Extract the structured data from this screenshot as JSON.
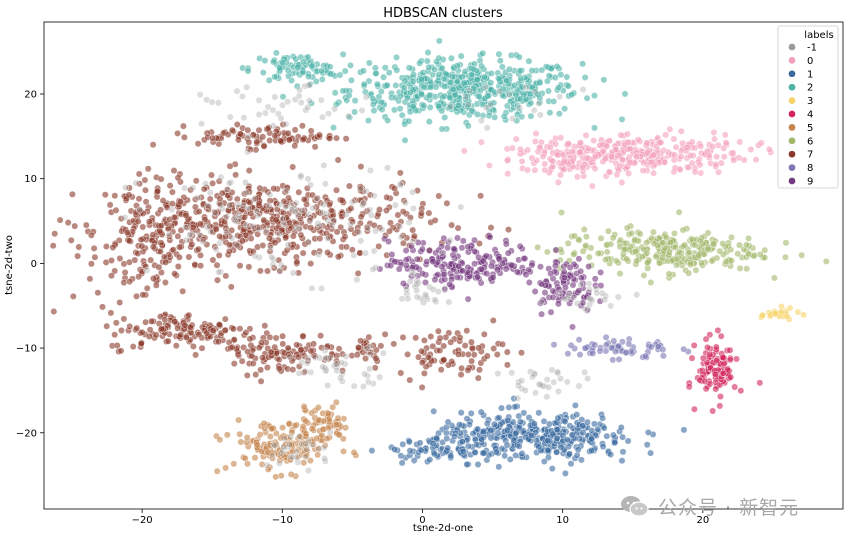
{
  "chart_data": {
    "type": "scatter",
    "title": "HDBSCAN clusters",
    "xlabel": "tsne-2d-one",
    "ylabel": "tsne-2d-two",
    "xlim": [
      -27,
      30
    ],
    "ylim": [
      -29,
      28.5
    ],
    "xticks": [
      -20,
      -10,
      0,
      10,
      20
    ],
    "yticks": [
      -20,
      -10,
      0,
      10,
      20
    ],
    "xtick_labels": [
      "−20",
      "−10",
      "0",
      "10",
      "20"
    ],
    "ytick_labels": [
      "−20",
      "−10",
      "0",
      "10",
      "20"
    ],
    "grid": false,
    "legend": {
      "title": "labels",
      "placement": "top-right",
      "entries": [
        {
          "label": "-1",
          "color": "#9b9b9b"
        },
        {
          "label": "0",
          "color": "#f4a0bc"
        },
        {
          "label": "1",
          "color": "#3b6aa0"
        },
        {
          "label": "2",
          "color": "#4db3a8"
        },
        {
          "label": "3",
          "color": "#f7d36a"
        },
        {
          "label": "4",
          "color": "#d2255a"
        },
        {
          "label": "5",
          "color": "#c5844b"
        },
        {
          "label": "6",
          "color": "#a1b86a"
        },
        {
          "label": "7",
          "color": "#8a3a2c"
        },
        {
          "label": "8",
          "color": "#7a78b4"
        },
        {
          "label": "9",
          "color": "#74397f"
        }
      ]
    },
    "series": [
      {
        "label": "2",
        "clusters": [
          {
            "center": [
              3,
              20.5
            ],
            "spread": [
              7.5,
              3.2
            ],
            "n": 520
          },
          {
            "center": [
              -9,
              23
            ],
            "spread": [
              3,
              1.5
            ],
            "n": 80
          }
        ]
      },
      {
        "label": "0",
        "clusters": [
          {
            "center": [
              15,
              13
            ],
            "spread": [
              7.5,
              2.2
            ],
            "n": 260
          },
          {
            "center": [
              11,
              12
            ],
            "spread": [
              4,
              2
            ],
            "n": 80
          }
        ]
      },
      {
        "label": "7",
        "clusters": [
          {
            "center": [
              -11,
              5
            ],
            "spread": [
              10.5,
              4.5
            ],
            "n": 520
          },
          {
            "center": [
              -20,
              2
            ],
            "spread": [
              3.5,
              7
            ],
            "n": 150
          },
          {
            "center": [
              -11,
              15
            ],
            "spread": [
              4.5,
              1.2
            ],
            "n": 90
          },
          {
            "center": [
              -17,
              -8
            ],
            "spread": [
              5,
              2
            ],
            "n": 130
          },
          {
            "center": [
              -10,
              -10.5
            ],
            "spread": [
              4.5,
              2.3
            ],
            "n": 110
          },
          {
            "center": [
              2,
              -10.5
            ],
            "spread": [
              3.5,
              2.5
            ],
            "n": 80
          },
          {
            "center": [
              -4,
              -10
            ],
            "spread": [
              1,
              1.5
            ],
            "n": 20
          }
        ]
      },
      {
        "label": "6",
        "clusters": [
          {
            "center": [
              17,
              1.5
            ],
            "spread": [
              6.5,
              2.3
            ],
            "n": 260
          }
        ]
      },
      {
        "label": "9",
        "clusters": [
          {
            "center": [
              3,
              0
            ],
            "spread": [
              5,
              2.5
            ],
            "n": 200
          },
          {
            "center": [
              10,
              -2.5
            ],
            "spread": [
              2,
              3
            ],
            "n": 90
          }
        ]
      },
      {
        "label": "8",
        "clusters": [
          {
            "center": [
              14,
              -10
            ],
            "spread": [
              3.5,
              1.3
            ],
            "n": 60
          }
        ]
      },
      {
        "label": "1",
        "clusters": [
          {
            "center": [
              8,
              -20.5
            ],
            "spread": [
              6.5,
              2.5
            ],
            "n": 380
          },
          {
            "center": [
              1,
              -22
            ],
            "spread": [
              3,
              1.2
            ],
            "n": 60
          }
        ]
      },
      {
        "label": "5",
        "clusters": [
          {
            "center": [
              -10,
              -21.5
            ],
            "spread": [
              3.5,
              2.8
            ],
            "n": 150
          },
          {
            "center": [
              -7,
              -19
            ],
            "spread": [
              1.5,
              2
            ],
            "n": 50
          }
        ]
      },
      {
        "label": "4",
        "clusters": [
          {
            "center": [
              21,
              -12.5
            ],
            "spread": [
              1.3,
              3.2
            ],
            "n": 110
          }
        ]
      },
      {
        "label": "3",
        "clusters": [
          {
            "center": [
              25.5,
              -6
            ],
            "spread": [
              1.2,
              0.6
            ],
            "n": 25
          }
        ]
      },
      {
        "label": "-1",
        "clusters": [
          {
            "center": [
              -10,
              5
            ],
            "spread": [
              9,
              6
            ],
            "n": 140
          },
          {
            "center": [
              -10,
              18
            ],
            "spread": [
              5,
              2.5
            ],
            "n": 40
          },
          {
            "center": [
              -6,
              -12
            ],
            "spread": [
              4,
              2
            ],
            "n": 40
          },
          {
            "center": [
              0,
              -3
            ],
            "spread": [
              1.5,
              2
            ],
            "n": 25
          },
          {
            "center": [
              12,
              -4
            ],
            "spread": [
              2.5,
              1.5
            ],
            "n": 25
          },
          {
            "center": [
              9,
              -14
            ],
            "spread": [
              3,
              1.5
            ],
            "n": 30
          },
          {
            "center": [
              -9,
              -22
            ],
            "spread": [
              2.5,
              2
            ],
            "n": 30
          },
          {
            "center": [
              6,
              19
            ],
            "spread": [
              4,
              2
            ],
            "n": 20
          }
        ]
      }
    ]
  },
  "watermark": {
    "text": "公众号 · 新智元",
    "icon": "wechat-icon"
  }
}
